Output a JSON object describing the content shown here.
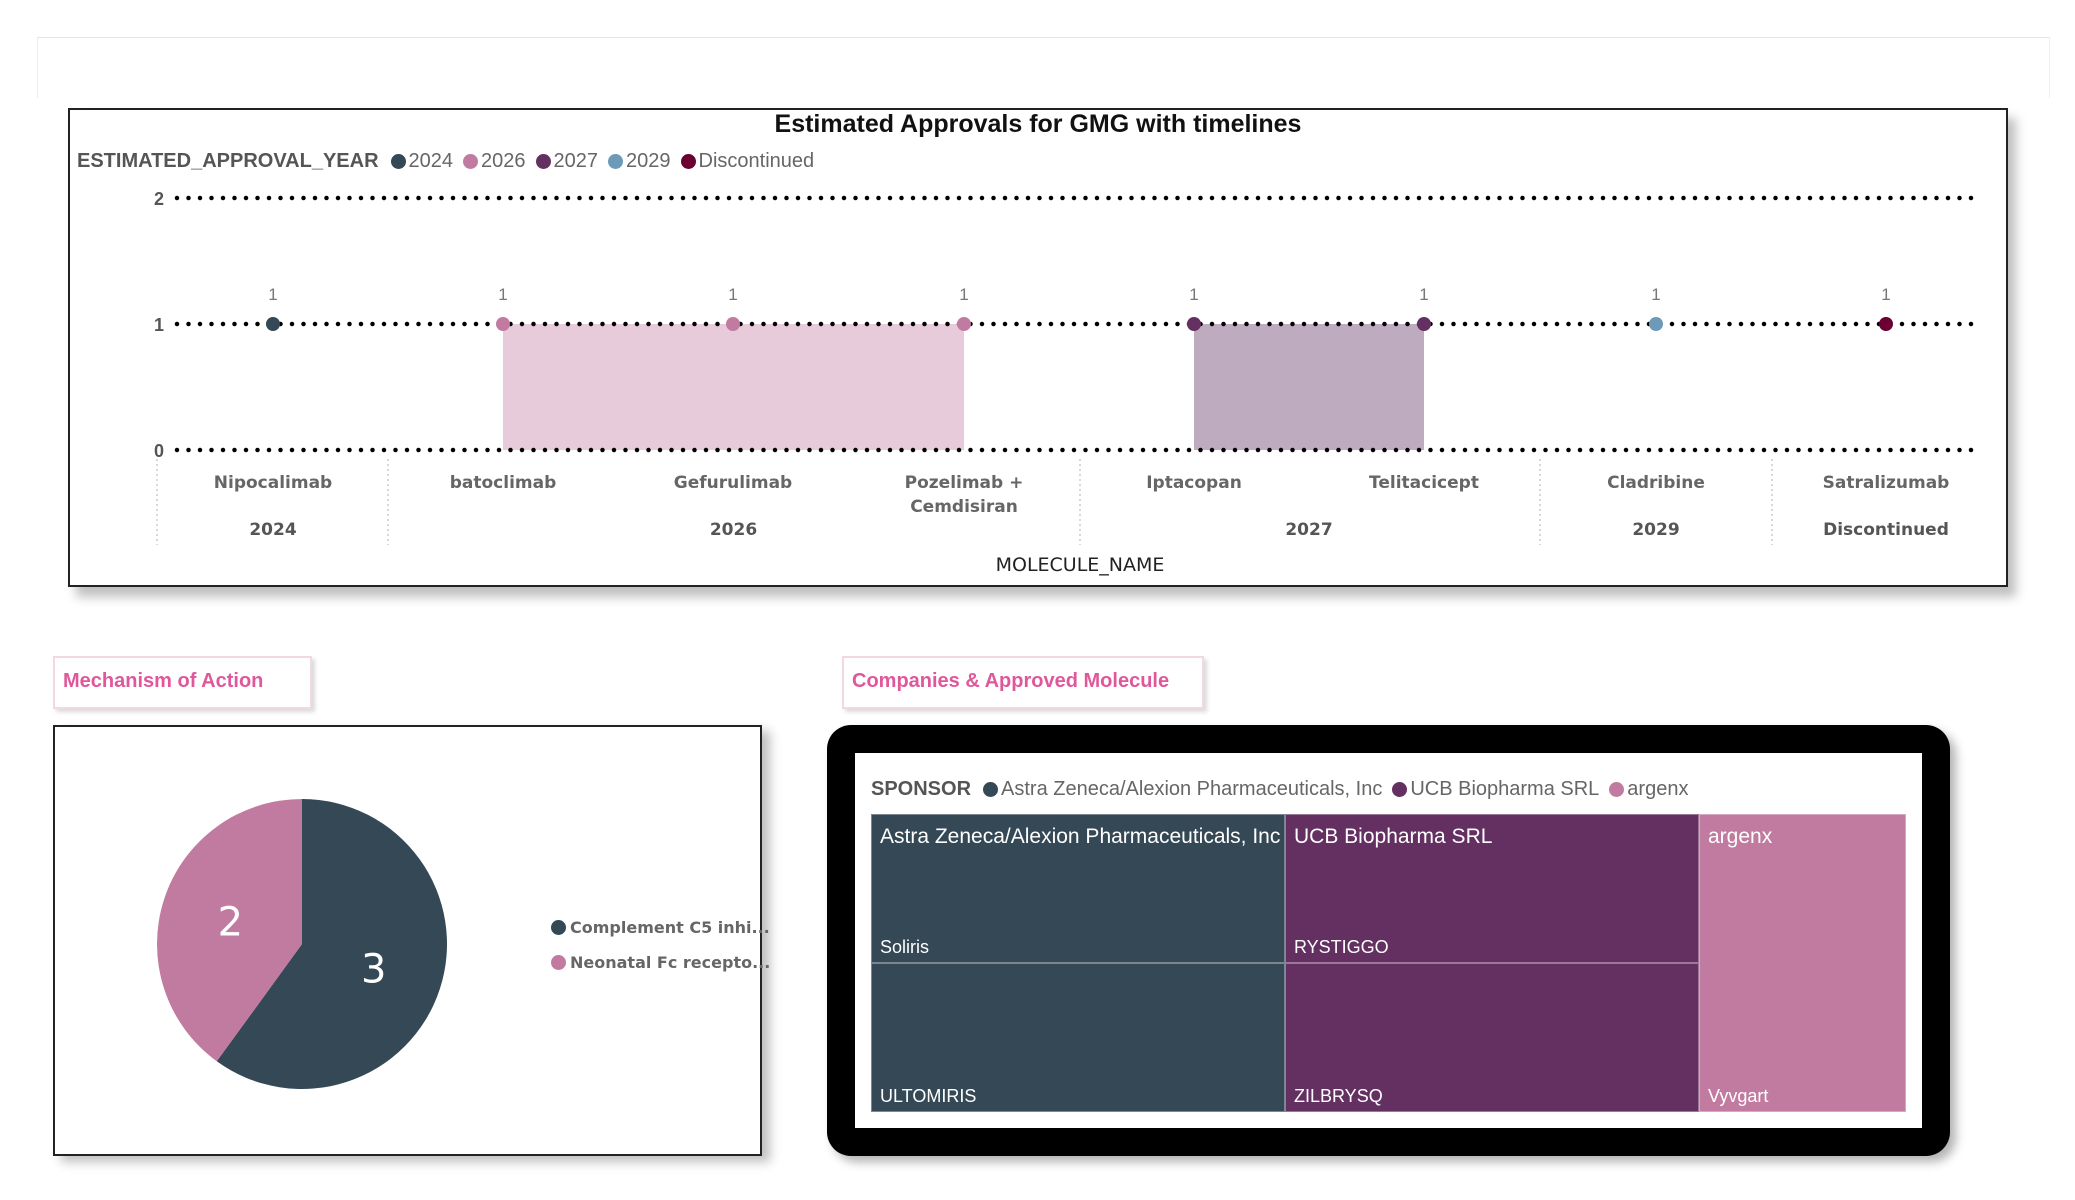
{
  "colors": {
    "c2024": "#344856",
    "c2026": "#c27ba0",
    "c2027": "#633061",
    "c2029": "#6c9ab8",
    "disc": "#6b0033",
    "area2026": "#e7cbdb",
    "area2027": "#bfabbf"
  },
  "timeline": {
    "title": "Estimated Approvals for GMG with timelines",
    "legend_title": "ESTIMATED_APPROVAL_YEAR",
    "legend": [
      {
        "label": "2024",
        "color": "#344856"
      },
      {
        "label": "2026",
        "color": "#c27ba0"
      },
      {
        "label": "2027",
        "color": "#633061"
      },
      {
        "label": "2029",
        "color": "#6c9ab8"
      },
      {
        "label": "Discontinued",
        "color": "#6b0033"
      }
    ],
    "xlabel": "MOLECULE_NAME"
  },
  "chart_data": {
    "type": "area",
    "title": "Estimated Approvals for GMG with timelines",
    "xlabel": "MOLECULE_NAME",
    "ylabel": "",
    "ylim": [
      0,
      2
    ],
    "yticks": [
      "0",
      "1",
      "2"
    ],
    "grid": true,
    "legend_position": "top-left",
    "categories": [
      "Nipocalimab",
      "batoclimab",
      "Gefurulimab",
      "Pozelimab + Cemdisiran",
      "Iptacopan",
      "Telitacicept",
      "Cladribine",
      "Satralizumab"
    ],
    "category_lines": [
      [
        "Nipocalimab"
      ],
      [
        "batoclimab"
      ],
      [
        "Gefurulimab"
      ],
      [
        "Pozelimab +",
        "Cemdisiran"
      ],
      [
        "Iptacopan"
      ],
      [
        "Telitacicept"
      ],
      [
        "Cladribine"
      ],
      [
        "Satralizumab"
      ]
    ],
    "groups": [
      {
        "label": "2024",
        "start": 0,
        "end": 0
      },
      {
        "label": "2026",
        "start": 1,
        "end": 3
      },
      {
        "label": "2027",
        "start": 4,
        "end": 5
      },
      {
        "label": "2029",
        "start": 6,
        "end": 6
      },
      {
        "label": "Discontinued",
        "start": 7,
        "end": 7
      }
    ],
    "values": [
      1,
      1,
      1,
      1,
      1,
      1,
      1,
      1
    ],
    "data_labels": [
      "1",
      "1",
      "1",
      "1",
      "1",
      "1",
      "1",
      "1"
    ],
    "point_series": [
      "2024",
      "2026",
      "2026",
      "2026",
      "2027",
      "2027",
      "2029",
      "Discontinued"
    ]
  },
  "moa": {
    "title": "Mechanism of Action",
    "slices": [
      {
        "label": "Complement C5 inhi...",
        "value": 3,
        "color": "#344856"
      },
      {
        "label": "Neonatal Fc recepto...",
        "value": 2,
        "color": "#c27ba0"
      }
    ]
  },
  "companies": {
    "title": "Companies & Approved Molecule",
    "legend_title": "SPONSOR",
    "legend": [
      {
        "label": "Astra Zeneca/Alexion Pharmaceuticals, Inc",
        "color": "#344856"
      },
      {
        "label": "UCB Biopharma SRL",
        "color": "#633061"
      },
      {
        "label": "argenx",
        "color": "#c27ba0"
      }
    ],
    "treemap": [
      {
        "sponsor": "Astra Zeneca/Alexion Pharmaceuticals, Inc",
        "color": "#344856",
        "molecules": [
          "Soliris",
          "ULTOMIRIS"
        ]
      },
      {
        "sponsor": "UCB Biopharma SRL",
        "color": "#633061",
        "molecules": [
          "RYSTIGGO",
          "ZILBRYSQ"
        ]
      },
      {
        "sponsor": "argenx",
        "color": "#c27ba0",
        "molecules": [
          "Vyvgart"
        ]
      }
    ]
  }
}
